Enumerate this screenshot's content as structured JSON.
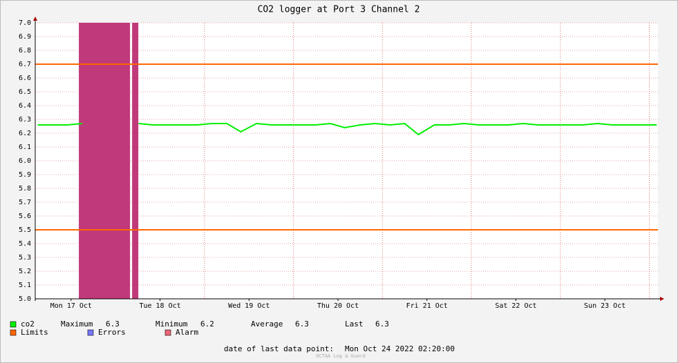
{
  "chart_data": {
    "type": "line",
    "title": "CO2 logger at Port 3 Channel 2",
    "xlim": [
      2.33,
      170.33
    ],
    "xticks": [
      {
        "value": 12,
        "label": "Mon 17 Oct"
      },
      {
        "value": 36,
        "label": "Tue 18 Oct"
      },
      {
        "value": 60,
        "label": "Wed 19 Oct"
      },
      {
        "value": 84,
        "label": "Thu 20 Oct"
      },
      {
        "value": 108,
        "label": "Fri 21 Oct"
      },
      {
        "value": 132,
        "label": "Sat 22 Oct"
      },
      {
        "value": 156,
        "label": "Sun 23 Oct"
      }
    ],
    "x_major_grid": [
      24,
      48,
      72,
      96,
      120,
      144,
      168
    ],
    "ylim": [
      5,
      7
    ],
    "yticks": [
      {
        "value": 5,
        "label": "5.0"
      },
      5.1,
      5.2,
      5.3,
      5.4,
      5.5,
      5.6,
      5.7,
      5.8,
      5.9,
      {
        "value": 6,
        "label": "6.0"
      },
      6.1,
      6.2,
      6.3,
      6.4,
      6.5,
      6.6,
      6.7,
      6.8,
      6.9,
      {
        "value": 7,
        "label": "7.0"
      }
    ],
    "grid": true,
    "x": [
      3,
      7,
      11,
      15,
      22,
      30.2,
      34,
      38,
      42,
      46,
      50,
      54,
      57.8,
      62,
      66,
      70,
      74,
      78,
      82,
      85.8,
      90,
      94,
      98,
      102,
      105.7,
      110,
      114,
      118,
      122,
      126,
      130,
      134,
      138,
      142,
      146,
      150,
      154,
      158,
      162,
      166,
      170
    ],
    "series": [
      {
        "name": "co2",
        "color": "#00ee00",
        "values": [
          6.26,
          6.26,
          6.26,
          6.27,
          null,
          6.27,
          6.26,
          6.26,
          6.26,
          6.26,
          6.27,
          6.27,
          6.21,
          6.27,
          6.26,
          6.26,
          6.26,
          6.26,
          6.27,
          6.24,
          6.26,
          6.27,
          6.26,
          6.27,
          6.19,
          6.26,
          6.26,
          6.27,
          6.26,
          6.26,
          6.26,
          6.27,
          6.26,
          6.26,
          6.26,
          6.26,
          6.27,
          6.26,
          6.26,
          6.26,
          6.26
        ]
      }
    ],
    "limits": {
      "name": "Limits",
      "color": "#ff6600",
      "values": [
        6.7,
        5.5
      ]
    },
    "bands": [
      {
        "start": 14.09,
        "end": 27.9
      },
      {
        "start": 28.46,
        "end": 30.14
      }
    ],
    "band_color": "#c0397a",
    "legend_extra": [
      {
        "name": "Errors",
        "color": "#7777ff"
      },
      {
        "name": "Alarm",
        "color": "#ee6677"
      }
    ],
    "stats": [
      {
        "label": "Maximum",
        "value": 6.3
      },
      {
        "label": "Minimum",
        "value": 6.2
      },
      {
        "label": "Average",
        "value": 6.3
      },
      {
        "label": "Last",
        "value": 6.3
      }
    ],
    "footer": {
      "label": "date of last data point:",
      "value": "Mon Oct 24 2022 02:20:00"
    },
    "watermark": "OCTAA Log & Guard"
  }
}
